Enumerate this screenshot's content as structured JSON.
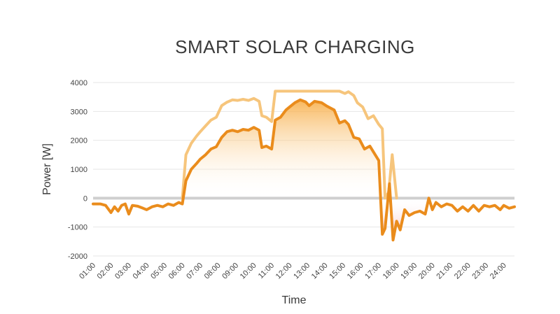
{
  "chart_data": {
    "type": "line",
    "title": "SMART SOLAR CHARGING",
    "xlabel": "Time",
    "ylabel": "Power [W]",
    "ylim": [
      -2000,
      4000
    ],
    "yticks": [
      "4000",
      "3000",
      "2000",
      "1000",
      "0",
      "-1000",
      "-2000"
    ],
    "xticks": [
      "01:00",
      "02:00",
      "03:00",
      "04:00",
      "05:00",
      "06:00",
      "07:00",
      "08:00",
      "09:00",
      "10:00",
      "11:00",
      "12:00",
      "13:00",
      "14:00",
      "15:00",
      "16:00",
      "17:00",
      "18:00",
      "19:00",
      "20:00",
      "21:00",
      "22:00",
      "23:00",
      "24:00"
    ],
    "grid": true,
    "colors": {
      "series_a": "#f6c57c",
      "series_b": "#ea8c1c",
      "zero_line": "#cfcfcf",
      "grid": "#e6e6e6",
      "fill_top": "#f7a83a",
      "fill_neg": "#f4a3a3"
    },
    "series": [
      {
        "values": [
          [
            6.0,
            0
          ],
          [
            6.2,
            1500
          ],
          [
            6.5,
            1900
          ],
          [
            6.8,
            2150
          ],
          [
            7.0,
            2300
          ],
          [
            7.3,
            2500
          ],
          [
            7.6,
            2700
          ],
          [
            7.9,
            2800
          ],
          [
            8.2,
            3200
          ],
          [
            8.5,
            3320
          ],
          [
            8.8,
            3400
          ],
          [
            9.1,
            3380
          ],
          [
            9.4,
            3420
          ],
          [
            9.7,
            3380
          ],
          [
            10.0,
            3450
          ],
          [
            10.3,
            3350
          ],
          [
            10.45,
            2850
          ],
          [
            10.7,
            2800
          ],
          [
            11.0,
            2650
          ],
          [
            11.2,
            3700
          ],
          [
            12.0,
            3700
          ],
          [
            13.0,
            3700
          ],
          [
            14.0,
            3700
          ],
          [
            14.8,
            3700
          ],
          [
            15.1,
            3620
          ],
          [
            15.3,
            3680
          ],
          [
            15.6,
            3550
          ],
          [
            15.8,
            3300
          ],
          [
            16.1,
            3150
          ],
          [
            16.4,
            2750
          ],
          [
            16.7,
            2850
          ],
          [
            17.0,
            2550
          ],
          [
            17.2,
            2400
          ],
          [
            17.35,
            0
          ],
          [
            17.55,
            200
          ],
          [
            17.75,
            1500
          ],
          [
            18.0,
            0
          ]
        ]
      },
      {
        "values": [
          [
            1.0,
            -200
          ],
          [
            1.4,
            -200
          ],
          [
            1.7,
            -250
          ],
          [
            2.0,
            -500
          ],
          [
            2.2,
            -300
          ],
          [
            2.4,
            -450
          ],
          [
            2.6,
            -250
          ],
          [
            2.8,
            -200
          ],
          [
            3.0,
            -550
          ],
          [
            3.2,
            -250
          ],
          [
            3.5,
            -280
          ],
          [
            3.8,
            -350
          ],
          [
            4.0,
            -400
          ],
          [
            4.3,
            -300
          ],
          [
            4.6,
            -250
          ],
          [
            4.9,
            -300
          ],
          [
            5.2,
            -200
          ],
          [
            5.5,
            -250
          ],
          [
            5.8,
            -150
          ],
          [
            6.0,
            -200
          ],
          [
            6.2,
            600
          ],
          [
            6.5,
            1000
          ],
          [
            6.8,
            1200
          ],
          [
            7.0,
            1350
          ],
          [
            7.3,
            1500
          ],
          [
            7.6,
            1700
          ],
          [
            7.9,
            1780
          ],
          [
            8.2,
            2100
          ],
          [
            8.5,
            2300
          ],
          [
            8.8,
            2350
          ],
          [
            9.1,
            2300
          ],
          [
            9.4,
            2380
          ],
          [
            9.7,
            2350
          ],
          [
            10.0,
            2450
          ],
          [
            10.3,
            2350
          ],
          [
            10.45,
            1750
          ],
          [
            10.7,
            1800
          ],
          [
            11.0,
            1700
          ],
          [
            11.2,
            2700
          ],
          [
            11.5,
            2800
          ],
          [
            11.8,
            3050
          ],
          [
            12.0,
            3150
          ],
          [
            12.3,
            3300
          ],
          [
            12.6,
            3400
          ],
          [
            12.9,
            3330
          ],
          [
            13.1,
            3200
          ],
          [
            13.4,
            3350
          ],
          [
            13.8,
            3300
          ],
          [
            14.1,
            3180
          ],
          [
            14.5,
            3050
          ],
          [
            14.8,
            2600
          ],
          [
            15.1,
            2680
          ],
          [
            15.3,
            2550
          ],
          [
            15.6,
            2100
          ],
          [
            15.9,
            2050
          ],
          [
            16.2,
            1700
          ],
          [
            16.5,
            1800
          ],
          [
            16.8,
            1500
          ],
          [
            17.0,
            1300
          ],
          [
            17.2,
            -1250
          ],
          [
            17.35,
            -1050
          ],
          [
            17.6,
            500
          ],
          [
            17.8,
            -1450
          ],
          [
            18.0,
            -800
          ],
          [
            18.2,
            -1100
          ],
          [
            18.45,
            -400
          ],
          [
            18.7,
            -600
          ],
          [
            19.0,
            -500
          ],
          [
            19.3,
            -450
          ],
          [
            19.6,
            -550
          ],
          [
            19.8,
            0
          ],
          [
            20.0,
            -400
          ],
          [
            20.2,
            -150
          ],
          [
            20.5,
            -300
          ],
          [
            20.8,
            -200
          ],
          [
            21.1,
            -250
          ],
          [
            21.4,
            -450
          ],
          [
            21.7,
            -300
          ],
          [
            22.0,
            -450
          ],
          [
            22.3,
            -250
          ],
          [
            22.6,
            -450
          ],
          [
            22.9,
            -250
          ],
          [
            23.2,
            -300
          ],
          [
            23.5,
            -250
          ],
          [
            23.8,
            -400
          ],
          [
            24.0,
            -250
          ],
          [
            24.3,
            -350
          ],
          [
            24.6,
            -300
          ]
        ]
      }
    ]
  }
}
